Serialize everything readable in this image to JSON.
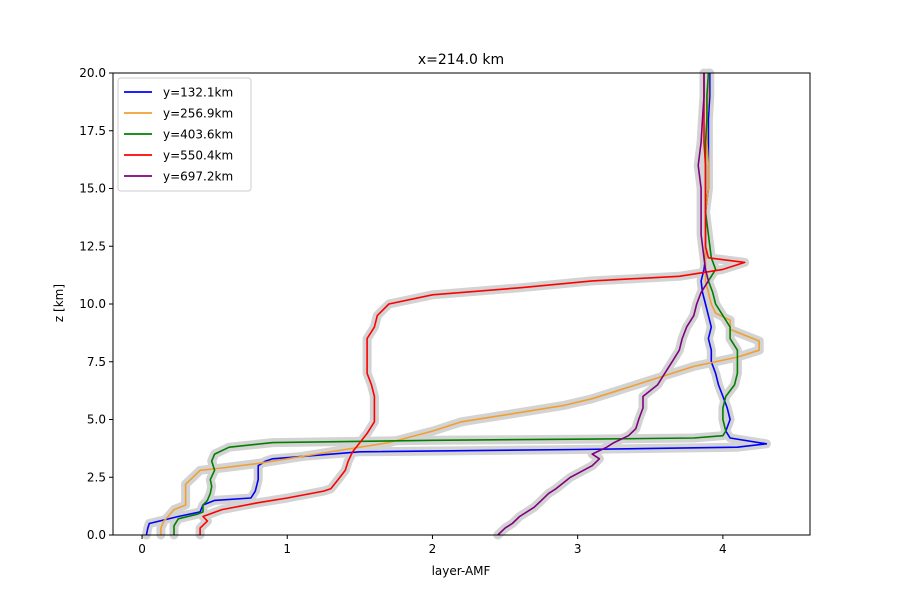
{
  "chart_data": {
    "type": "line",
    "title": "x=214.0 km",
    "xlabel": "layer-AMF",
    "ylabel": "z [km]",
    "xlim": [
      -0.2,
      4.6
    ],
    "ylim": [
      0,
      20
    ],
    "xticks": [
      0,
      1,
      2,
      3,
      4
    ],
    "yticks": [
      0.0,
      2.5,
      5.0,
      7.5,
      10.0,
      12.5,
      15.0,
      17.5,
      20.0
    ],
    "xtick_labels": [
      "0",
      "1",
      "2",
      "3",
      "4"
    ],
    "ytick_labels": [
      "0.0",
      "2.5",
      "5.0",
      "7.5",
      "10.0",
      "12.5",
      "15.0",
      "17.5",
      "20.0"
    ],
    "grid": false,
    "legend_position": "upper left",
    "uncertainty_band": "light grey shaded band around each profile",
    "series": [
      {
        "name": "y=132.1km",
        "color": "#0000ff",
        "points": [
          [
            0.03,
            0.0
          ],
          [
            0.04,
            0.3
          ],
          [
            0.05,
            0.5
          ],
          [
            0.25,
            0.8
          ],
          [
            0.4,
            1.0
          ],
          [
            0.42,
            1.3
          ],
          [
            0.5,
            1.5
          ],
          [
            0.75,
            1.6
          ],
          [
            0.78,
            1.9
          ],
          [
            0.8,
            2.4
          ],
          [
            0.8,
            3.0
          ],
          [
            0.85,
            3.2
          ],
          [
            0.9,
            3.3
          ],
          [
            1.5,
            3.6
          ],
          [
            3.0,
            3.7
          ],
          [
            4.1,
            3.8
          ],
          [
            4.3,
            3.95
          ],
          [
            4.05,
            4.2
          ],
          [
            4.02,
            4.5
          ],
          [
            4.05,
            5.0
          ],
          [
            4.03,
            5.5
          ],
          [
            4.0,
            6.0
          ],
          [
            3.97,
            6.5
          ],
          [
            3.95,
            7.0
          ],
          [
            3.92,
            7.5
          ],
          [
            3.92,
            8.0
          ],
          [
            3.9,
            8.5
          ],
          [
            3.92,
            9.0
          ],
          [
            3.9,
            9.5
          ],
          [
            3.88,
            10.0
          ],
          [
            3.86,
            10.5
          ],
          [
            3.85,
            11.0
          ],
          [
            3.87,
            11.5
          ],
          [
            3.88,
            12.0
          ],
          [
            3.88,
            13.0
          ],
          [
            3.88,
            14.0
          ],
          [
            3.9,
            15.0
          ],
          [
            3.9,
            16.0
          ],
          [
            3.9,
            17.0
          ],
          [
            3.9,
            18.0
          ],
          [
            3.91,
            19.0
          ],
          [
            3.91,
            20.0
          ]
        ]
      },
      {
        "name": "y=256.9km",
        "color": "#f0a030",
        "points": [
          [
            0.13,
            0.0
          ],
          [
            0.13,
            0.3
          ],
          [
            0.15,
            0.6
          ],
          [
            0.18,
            0.8
          ],
          [
            0.22,
            1.1
          ],
          [
            0.3,
            1.3
          ],
          [
            0.3,
            1.6
          ],
          [
            0.3,
            1.8
          ],
          [
            0.3,
            2.0
          ],
          [
            0.3,
            2.2
          ],
          [
            0.35,
            2.5
          ],
          [
            0.4,
            2.8
          ],
          [
            0.55,
            2.9
          ],
          [
            0.8,
            3.1
          ],
          [
            1.1,
            3.4
          ],
          [
            1.4,
            3.7
          ],
          [
            1.7,
            4.0
          ],
          [
            2.0,
            4.5
          ],
          [
            2.2,
            4.9
          ],
          [
            2.4,
            5.1
          ],
          [
            2.6,
            5.3
          ],
          [
            2.9,
            5.6
          ],
          [
            3.1,
            5.9
          ],
          [
            3.25,
            6.2
          ],
          [
            3.4,
            6.5
          ],
          [
            3.6,
            6.9
          ],
          [
            3.8,
            7.3
          ],
          [
            4.1,
            7.7
          ],
          [
            4.25,
            8.0
          ],
          [
            4.25,
            8.4
          ],
          [
            4.05,
            8.9
          ],
          [
            4.05,
            9.3
          ],
          [
            3.95,
            9.6
          ],
          [
            3.92,
            10.0
          ],
          [
            3.9,
            10.5
          ],
          [
            3.88,
            11.0
          ],
          [
            3.88,
            12.0
          ],
          [
            3.88,
            13.0
          ],
          [
            3.88,
            14.0
          ],
          [
            3.9,
            15.0
          ],
          [
            3.9,
            16.0
          ],
          [
            3.89,
            17.0
          ],
          [
            3.89,
            18.0
          ],
          [
            3.9,
            19.0
          ],
          [
            3.9,
            20.0
          ]
        ]
      },
      {
        "name": "y=403.6km",
        "color": "#008000",
        "points": [
          [
            0.22,
            0.0
          ],
          [
            0.22,
            0.4
          ],
          [
            0.25,
            0.7
          ],
          [
            0.38,
            0.9
          ],
          [
            0.42,
            1.0
          ],
          [
            0.42,
            1.3
          ],
          [
            0.45,
            1.5
          ],
          [
            0.47,
            1.8
          ],
          [
            0.48,
            2.1
          ],
          [
            0.47,
            2.4
          ],
          [
            0.5,
            2.8
          ],
          [
            0.48,
            3.2
          ],
          [
            0.5,
            3.5
          ],
          [
            0.6,
            3.8
          ],
          [
            0.9,
            4.0
          ],
          [
            2.0,
            4.1
          ],
          [
            3.1,
            4.15
          ],
          [
            3.8,
            4.2
          ],
          [
            4.0,
            4.3
          ],
          [
            4.02,
            4.5
          ],
          [
            4.0,
            5.0
          ],
          [
            4.0,
            5.5
          ],
          [
            4.02,
            6.0
          ],
          [
            4.08,
            6.5
          ],
          [
            4.1,
            7.0
          ],
          [
            4.1,
            7.5
          ],
          [
            4.1,
            8.0
          ],
          [
            4.05,
            8.5
          ],
          [
            4.05,
            9.0
          ],
          [
            4.0,
            9.5
          ],
          [
            3.95,
            10.0
          ],
          [
            3.93,
            10.5
          ],
          [
            3.9,
            11.0
          ],
          [
            3.95,
            11.5
          ],
          [
            3.92,
            12.0
          ],
          [
            3.9,
            13.0
          ],
          [
            3.88,
            14.0
          ],
          [
            3.88,
            15.0
          ],
          [
            3.88,
            16.0
          ],
          [
            3.88,
            17.0
          ],
          [
            3.89,
            18.0
          ],
          [
            3.89,
            19.0
          ],
          [
            3.9,
            20.0
          ]
        ]
      },
      {
        "name": "y=550.4km",
        "color": "#ff0000",
        "points": [
          [
            0.4,
            0.0
          ],
          [
            0.4,
            0.3
          ],
          [
            0.45,
            0.6
          ],
          [
            0.42,
            0.8
          ],
          [
            0.55,
            1.1
          ],
          [
            0.8,
            1.4
          ],
          [
            1.0,
            1.6
          ],
          [
            1.25,
            1.9
          ],
          [
            1.3,
            2.0
          ],
          [
            1.35,
            2.4
          ],
          [
            1.4,
            2.8
          ],
          [
            1.42,
            3.2
          ],
          [
            1.45,
            3.6
          ],
          [
            1.5,
            4.0
          ],
          [
            1.55,
            4.4
          ],
          [
            1.6,
            4.9
          ],
          [
            1.6,
            5.5
          ],
          [
            1.6,
            6.0
          ],
          [
            1.58,
            6.5
          ],
          [
            1.55,
            7.0
          ],
          [
            1.55,
            7.5
          ],
          [
            1.55,
            8.0
          ],
          [
            1.55,
            8.5
          ],
          [
            1.6,
            9.0
          ],
          [
            1.62,
            9.5
          ],
          [
            1.7,
            10.0
          ],
          [
            2.0,
            10.4
          ],
          [
            2.6,
            10.7
          ],
          [
            3.1,
            11.0
          ],
          [
            3.7,
            11.2
          ],
          [
            4.0,
            11.5
          ],
          [
            4.15,
            11.8
          ],
          [
            3.9,
            12.0
          ],
          [
            3.88,
            12.5
          ],
          [
            3.88,
            13.0
          ],
          [
            3.88,
            14.0
          ],
          [
            3.88,
            15.0
          ],
          [
            3.88,
            16.0
          ],
          [
            3.87,
            17.0
          ],
          [
            3.87,
            18.0
          ],
          [
            3.87,
            19.0
          ],
          [
            3.87,
            20.0
          ]
        ]
      },
      {
        "name": "y=697.2km",
        "color": "#800080",
        "points": [
          [
            2.45,
            0.0
          ],
          [
            2.5,
            0.3
          ],
          [
            2.55,
            0.5
          ],
          [
            2.6,
            0.8
          ],
          [
            2.7,
            1.2
          ],
          [
            2.75,
            1.5
          ],
          [
            2.8,
            1.8
          ],
          [
            2.85,
            2.0
          ],
          [
            2.95,
            2.5
          ],
          [
            3.1,
            3.0
          ],
          [
            3.15,
            3.3
          ],
          [
            3.1,
            3.5
          ],
          [
            3.2,
            3.8
          ],
          [
            3.25,
            4.0
          ],
          [
            3.35,
            4.3
          ],
          [
            3.4,
            4.6
          ],
          [
            3.42,
            5.0
          ],
          [
            3.45,
            5.5
          ],
          [
            3.45,
            6.0
          ],
          [
            3.55,
            6.5
          ],
          [
            3.6,
            7.0
          ],
          [
            3.65,
            7.5
          ],
          [
            3.7,
            8.0
          ],
          [
            3.72,
            8.5
          ],
          [
            3.75,
            9.0
          ],
          [
            3.8,
            9.5
          ],
          [
            3.82,
            10.0
          ],
          [
            3.85,
            10.5
          ],
          [
            3.9,
            11.0
          ],
          [
            3.88,
            11.5
          ],
          [
            3.87,
            12.0
          ],
          [
            3.85,
            13.0
          ],
          [
            3.85,
            14.0
          ],
          [
            3.85,
            15.0
          ],
          [
            3.83,
            16.0
          ],
          [
            3.85,
            17.0
          ],
          [
            3.86,
            18.0
          ],
          [
            3.87,
            19.0
          ],
          [
            3.87,
            20.0
          ]
        ]
      }
    ]
  }
}
